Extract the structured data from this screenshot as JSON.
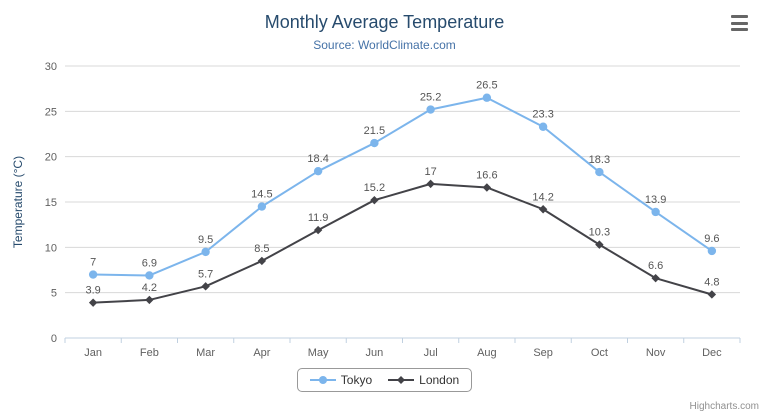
{
  "header": {
    "title": "Monthly Average Temperature",
    "subtitle": "Source: WorldClimate.com"
  },
  "chart_data": {
    "type": "line",
    "categories": [
      "Jan",
      "Feb",
      "Mar",
      "Apr",
      "May",
      "Jun",
      "Jul",
      "Aug",
      "Sep",
      "Oct",
      "Nov",
      "Dec"
    ],
    "series": [
      {
        "name": "Tokyo",
        "color": "#7cb5ec",
        "marker": "circle",
        "values": [
          7,
          6.9,
          9.5,
          14.5,
          18.4,
          21.5,
          25.2,
          26.5,
          23.3,
          18.3,
          13.9,
          9.6
        ]
      },
      {
        "name": "London",
        "color": "#434348",
        "marker": "diamond",
        "values": [
          3.9,
          4.2,
          5.7,
          8.5,
          11.9,
          15.2,
          17,
          16.6,
          14.2,
          10.3,
          6.6,
          4.8
        ]
      }
    ],
    "title": "Monthly Average Temperature",
    "subtitle": "Source: WorldClimate.com",
    "xlabel": "",
    "ylabel": "Temperature (°C)",
    "ylim": [
      0,
      30
    ],
    "ytick_interval": 5,
    "grid": true,
    "legend_position": "bottom"
  },
  "colors": {
    "title": "#274b6d",
    "subtitle": "#4572a7",
    "axis_title": "#274b6d",
    "axis_label": "#606060",
    "grid_line": "#d8d8d8",
    "axis_line": "#c0d0e0",
    "data_label": "#555555",
    "legend_text": "#333333",
    "credit": "#909090",
    "export_icon": "#666666"
  },
  "icons": {
    "export_menu": "hamburger-icon"
  },
  "credits": {
    "text": "Highcharts.com"
  }
}
